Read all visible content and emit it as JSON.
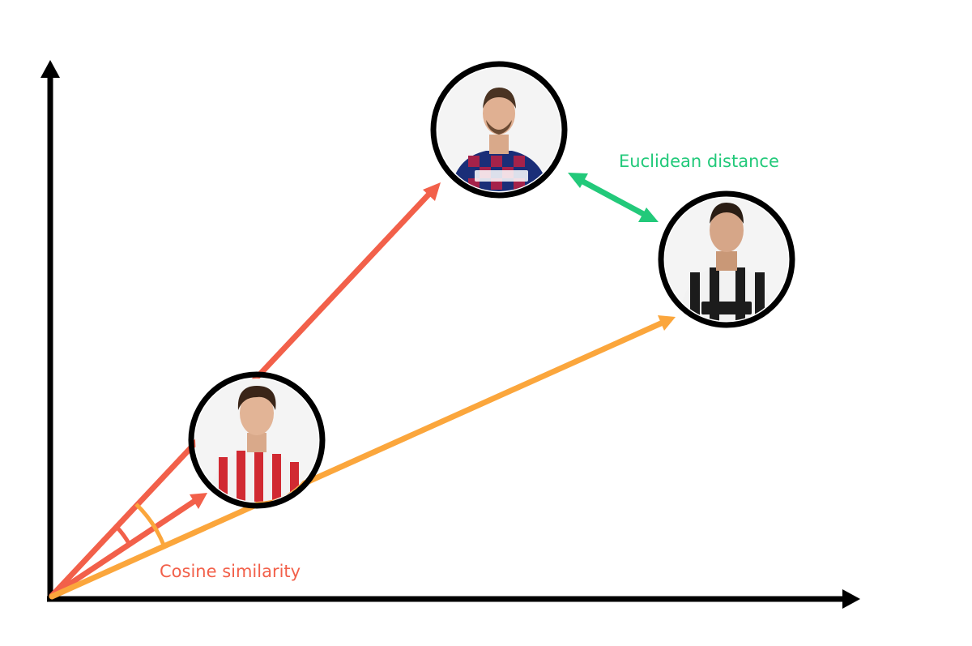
{
  "labels": {
    "euclidean": "Euclidean distance",
    "cosine": "Cosine similarity"
  },
  "colors": {
    "axis": "#000000",
    "vector_red": "#f2604a",
    "vector_orange": "#fba63c",
    "distance": "#22c97a",
    "label_cosine": "#f2604a",
    "label_euclidean": "#22c97a",
    "portrait_ring": "#000000"
  },
  "portraits": [
    {
      "id": "top",
      "icon": "player-portrait-barcelona-icon"
    },
    {
      "id": "right",
      "icon": "player-portrait-juventus-icon"
    },
    {
      "id": "lower",
      "icon": "player-portrait-atletico-icon"
    }
  ]
}
